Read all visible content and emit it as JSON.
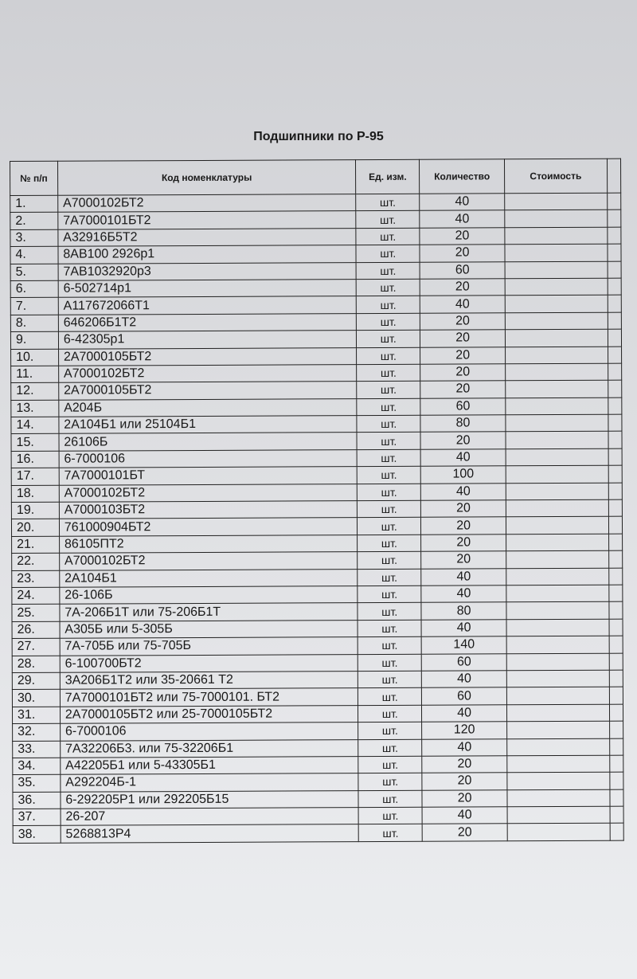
{
  "title": "Подшипники по Р-95",
  "headers": {
    "num": "№ п/п",
    "code": "Код номенклатуры",
    "unit": "Ед. изм.",
    "qty": "Количество",
    "cost": "Стоимость"
  },
  "rows": [
    {
      "num": "1.",
      "code": "А7000102БТ2",
      "unit": "шт.",
      "qty": "40"
    },
    {
      "num": "2.",
      "code": "7А7000101БТ2",
      "unit": "шт.",
      "qty": "40"
    },
    {
      "num": "3.",
      "code": "А32916Б5Т2",
      "unit": "шт.",
      "qty": "20"
    },
    {
      "num": "4.",
      "code": "8АВ100 2926р1",
      "unit": "шт.",
      "qty": "20"
    },
    {
      "num": "5.",
      "code": "7АВ1032920р3",
      "unit": "шт.",
      "qty": "60"
    },
    {
      "num": "6.",
      "code": "6-502714р1",
      "unit": "шт.",
      "qty": "20"
    },
    {
      "num": "7.",
      "code": "А117672066Т1",
      "unit": "шт.",
      "qty": "40"
    },
    {
      "num": "8.",
      "code": "646206Б1Т2",
      "unit": "шт.",
      "qty": "20"
    },
    {
      "num": "9.",
      "code": "6-42305р1",
      "unit": "шт.",
      "qty": "20"
    },
    {
      "num": "10.",
      "code": "2А7000105БТ2",
      "unit": "шт.",
      "qty": "20"
    },
    {
      "num": "11.",
      "code": "А7000102БТ2",
      "unit": "шт.",
      "qty": "20"
    },
    {
      "num": "12.",
      "code": "2А7000105БТ2",
      "unit": "шт.",
      "qty": "20"
    },
    {
      "num": "13.",
      "code": "А204Б",
      "unit": "шт.",
      "qty": "60"
    },
    {
      "num": "14.",
      "code": "2А104Б1 или 25104Б1",
      "unit": "шт.",
      "qty": "80"
    },
    {
      "num": "15.",
      "code": "26106Б",
      "unit": "шт.",
      "qty": "20"
    },
    {
      "num": "16.",
      "code": "6-7000106",
      "unit": "шт.",
      "qty": "40"
    },
    {
      "num": "17.",
      "code": "7А7000101БТ",
      "unit": "шт.",
      "qty": "100"
    },
    {
      "num": "18.",
      "code": "А7000102БТ2",
      "unit": "шт.",
      "qty": "40"
    },
    {
      "num": "19.",
      "code": "А7000103БТ2",
      "unit": "шт.",
      "qty": "20"
    },
    {
      "num": "20.",
      "code": "761000904БТ2",
      "unit": "шт.",
      "qty": "20"
    },
    {
      "num": "21.",
      "code": "86105ПТ2",
      "unit": "шт.",
      "qty": "20"
    },
    {
      "num": "22.",
      "code": "А7000102БТ2",
      "unit": "шт.",
      "qty": "20"
    },
    {
      "num": "23.",
      "code": "2А104Б1",
      "unit": "шт.",
      "qty": "40"
    },
    {
      "num": "24.",
      "code": "26-106Б",
      "unit": "шт.",
      "qty": "40"
    },
    {
      "num": "25.",
      "code": "7А-206Б1Т или 75-206Б1Т",
      "unit": "шт.",
      "qty": "80"
    },
    {
      "num": "26.",
      "code": "А305Б или 5-305Б",
      "unit": "шт.",
      "qty": "40"
    },
    {
      "num": "27.",
      "code": "7А-705Б или 75-705Б",
      "unit": "шт.",
      "qty": "140"
    },
    {
      "num": "28.",
      "code": "6-100700БТ2",
      "unit": "шт.",
      "qty": "60"
    },
    {
      "num": "29.",
      "code": "3А206Б1Т2 или 35-20661 Т2",
      "unit": "шт.",
      "qty": "40"
    },
    {
      "num": "30.",
      "code": "7А7000101БТ2  или 75-7000101.  БТ2",
      "unit": "шт.",
      "qty": "60"
    },
    {
      "num": "31.",
      "code": "2А7000105БТ2 или 25-7000105БТ2",
      "unit": "шт.",
      "qty": "40"
    },
    {
      "num": "32.",
      "code": "6-7000106",
      "unit": "шт.",
      "qty": "120"
    },
    {
      "num": "33.",
      "code": "7А32206Б3. или 75-32206Б1",
      "unit": "шт.",
      "qty": "40"
    },
    {
      "num": "34.",
      "code": "А42205Б1 или 5-43305Б1",
      "unit": "шт.",
      "qty": "20"
    },
    {
      "num": "35.",
      "code": "А292204Б-1",
      "unit": "шт.",
      "qty": "20"
    },
    {
      "num": "36.",
      "code": "6-292205Р1 или 292205Б15",
      "unit": "шт.",
      "qty": "20"
    },
    {
      "num": "37.",
      "code": "26-207",
      "unit": "шт.",
      "qty": "40"
    },
    {
      "num": "38.",
      "code": "5268813Р4",
      "unit": "шт.",
      "qty": "20"
    }
  ]
}
